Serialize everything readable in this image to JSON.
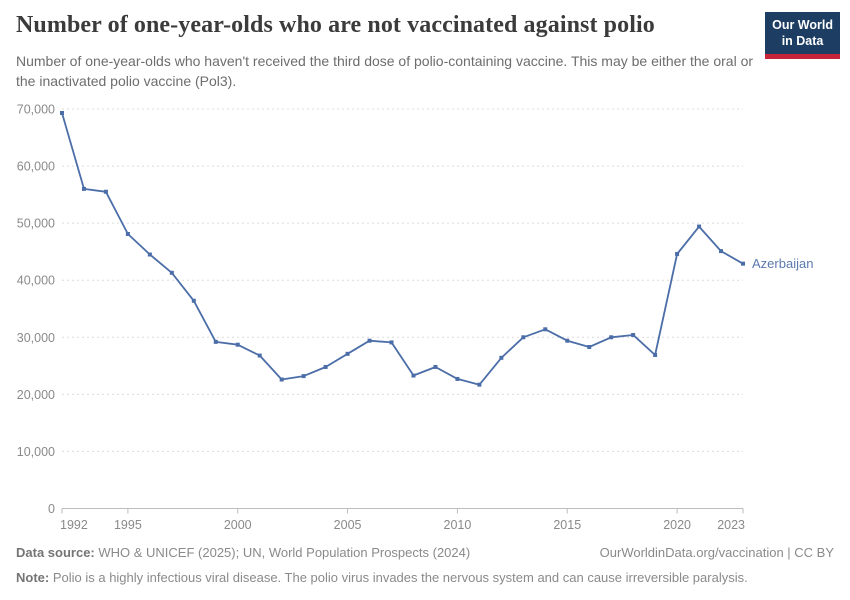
{
  "header": {
    "title": "Number of one-year-olds who are not vaccinated against polio",
    "subtitle": "Number of one-year-olds who haven't received the third dose of polio-containing vaccine. This may be either the oral or the inactivated polio vaccine (Pol3).",
    "logo": {
      "line1": "Our World",
      "line2": "in Data"
    }
  },
  "chart_data": {
    "type": "line",
    "title": "Number of one-year-olds who are not vaccinated against polio",
    "x": [
      1992,
      1993,
      1994,
      1995,
      1996,
      1997,
      1998,
      1999,
      2000,
      2001,
      2002,
      2003,
      2004,
      2005,
      2006,
      2007,
      2008,
      2009,
      2010,
      2011,
      2012,
      2013,
      2014,
      2015,
      2016,
      2017,
      2018,
      2019,
      2020,
      2021,
      2022,
      2023
    ],
    "series": [
      {
        "name": "Azerbaijan",
        "values": [
          69300,
          56000,
          55500,
          48100,
          44500,
          41300,
          36400,
          29200,
          28700,
          26800,
          22600,
          23200,
          24800,
          27100,
          29400,
          29100,
          23300,
          24800,
          22700,
          21700,
          26400,
          30000,
          31400,
          29400,
          28300,
          30000,
          30400,
          26900,
          44600,
          49400,
          45100,
          42900
        ],
        "color": "#4c6ea8"
      }
    ],
    "x_ticks": [
      1992,
      1995,
      2000,
      2005,
      2010,
      2015,
      2020,
      2023
    ],
    "y_ticks": [
      0,
      10000,
      20000,
      30000,
      40000,
      50000,
      60000,
      70000
    ],
    "xlim": [
      1992,
      2023
    ],
    "ylim": [
      0,
      70000
    ],
    "grid": "horizontal-dashed",
    "legend_position": "end-of-line-label",
    "xlabel": "",
    "ylabel": ""
  },
  "footer": {
    "data_source_label": "Data source:",
    "data_source_text": " WHO & UNICEF (2025); UN, World Population Prospects (2024)",
    "link": "OurWorldinData.org/vaccination | CC BY",
    "note_label": "Note:",
    "note_text": " Polio is a highly infectious viral disease. The polio virus invades the nervous system and can cause irreversible paralysis."
  },
  "colors": {
    "line": "#4c6ea8",
    "series_label": "#5b79ae",
    "logo_bg": "#1d3d63",
    "logo_stripe": "#c7243a",
    "grid": "#dcdcdc",
    "axis": "#bdbdbd",
    "tick_label": "#8a8a8a",
    "title": "#3b3b3b",
    "subtitle": "#6d6d6d",
    "footer": "#8a8a8a"
  }
}
